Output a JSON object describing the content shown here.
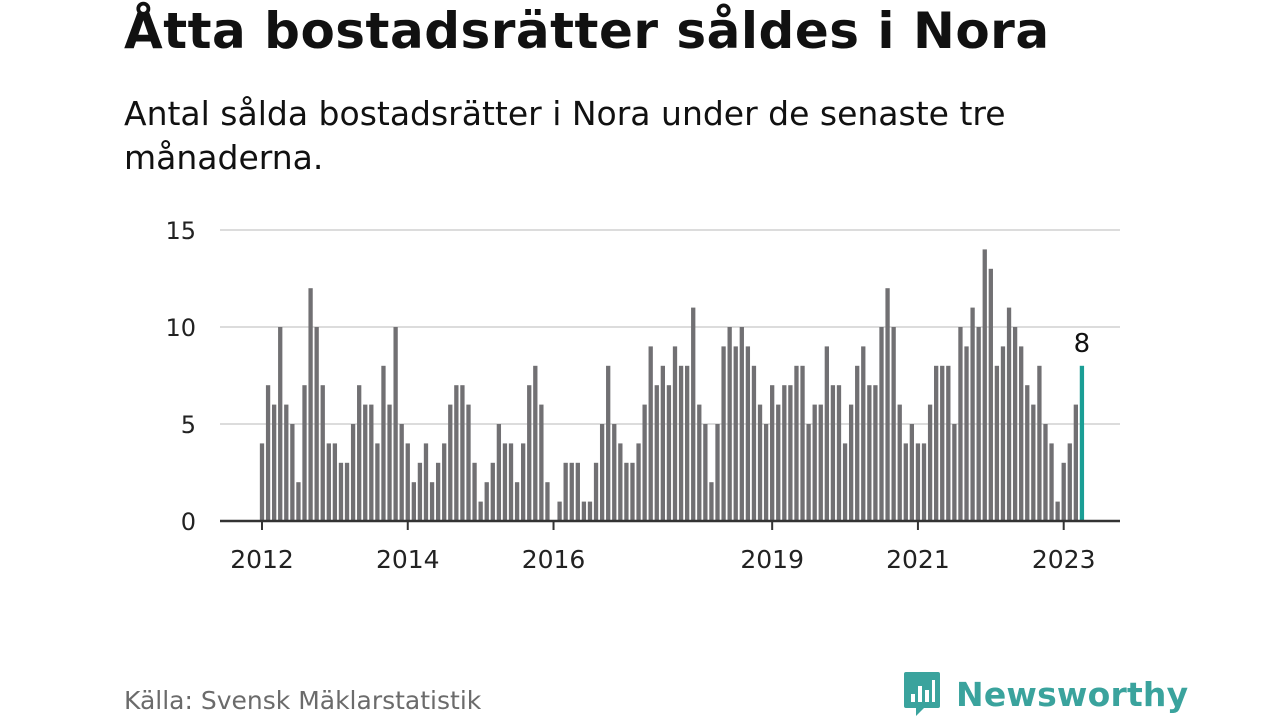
{
  "title": "Åtta bostadsrätter såldes i Nora",
  "subtitle": "Antal sålda bostadsrätter i Nora under de senaste tre månaderna.",
  "source": "Källa: Svensk Mäklarstatistik",
  "brand": "Newsworthy",
  "colors": {
    "bar": "#717073",
    "highlight": "#1a9e95",
    "grid": "#dcdcdc",
    "axis": "#333333",
    "brand": "#3aa39d"
  },
  "chart_data": {
    "type": "bar",
    "title": "Åtta bostadsrätter såldes i Nora",
    "subtitle": "Antal sålda bostadsrätter i Nora under de senaste tre månaderna.",
    "xlabel": "",
    "ylabel": "",
    "ylim": [
      0,
      15
    ],
    "yticks": [
      0,
      5,
      10,
      15
    ],
    "grid": true,
    "legend": "none",
    "x_start": "2012-01",
    "interval": "month",
    "xtick_labels": [
      {
        "label": "2012",
        "month": "2012-01"
      },
      {
        "label": "2014",
        "month": "2014-01"
      },
      {
        "label": "2016",
        "month": "2016-01"
      },
      {
        "label": "2019",
        "month": "2019-01"
      },
      {
        "label": "2021",
        "month": "2021-01"
      },
      {
        "label": "2023",
        "month": "2023-01"
      }
    ],
    "values": [
      4,
      7,
      6,
      10,
      6,
      5,
      2,
      7,
      12,
      10,
      7,
      4,
      4,
      3,
      3,
      5,
      7,
      6,
      6,
      4,
      8,
      6,
      10,
      5,
      4,
      2,
      3,
      4,
      2,
      3,
      4,
      6,
      7,
      7,
      6,
      3,
      1,
      2,
      3,
      5,
      4,
      4,
      2,
      4,
      7,
      8,
      6,
      2,
      0,
      1,
      3,
      3,
      3,
      1,
      1,
      3,
      5,
      8,
      5,
      4,
      3,
      3,
      4,
      6,
      9,
      7,
      8,
      7,
      9,
      8,
      8,
      11,
      6,
      5,
      2,
      5,
      9,
      10,
      9,
      10,
      9,
      8,
      6,
      5,
      7,
      6,
      7,
      7,
      8,
      8,
      5,
      6,
      6,
      9,
      7,
      7,
      4,
      6,
      8,
      9,
      7,
      7,
      10,
      12,
      10,
      6,
      4,
      5,
      4,
      4,
      6,
      8,
      8,
      8,
      5,
      10,
      9,
      11,
      10,
      14,
      13,
      8,
      9,
      11,
      10,
      9,
      7,
      6,
      8,
      5,
      4,
      1,
      3,
      4,
      6,
      8
    ],
    "highlight": {
      "index": 135,
      "label": "8"
    }
  }
}
